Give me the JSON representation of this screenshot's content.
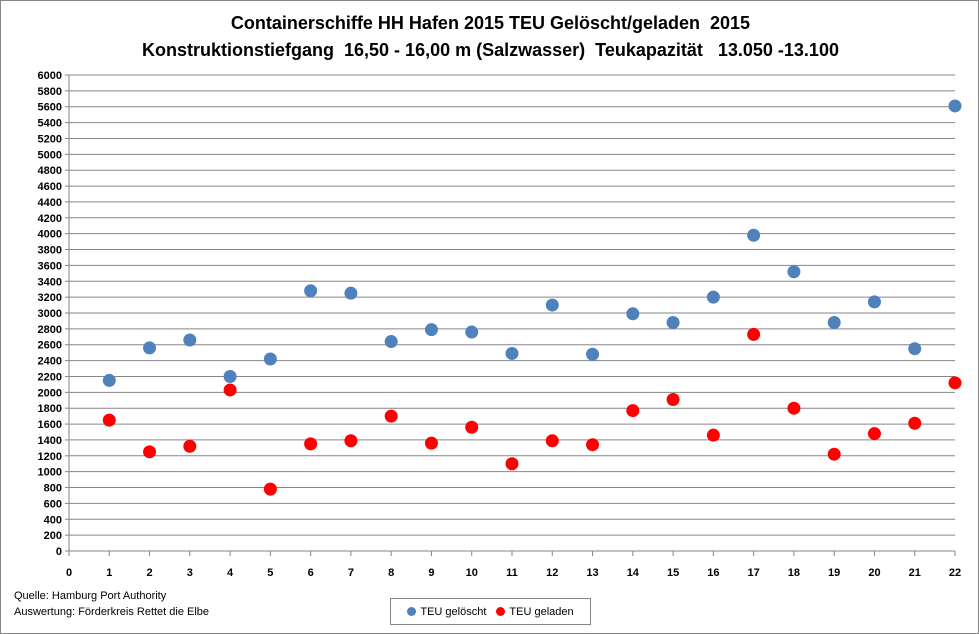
{
  "chart_data": {
    "type": "scatter",
    "title": "Containerschiffe HH Hafen 2015 TEU Gelöscht/geladen  2015",
    "subtitle": "Konstruktionstiefgang  16,50 - 16,00 m (Salzwasser)  Teukapazität   13.050 -13.100",
    "xlabel": "",
    "ylabel": "",
    "xlim": [
      0,
      22
    ],
    "ylim": [
      0,
      6000
    ],
    "x_ticks": [
      0,
      1,
      2,
      3,
      4,
      5,
      6,
      7,
      8,
      9,
      10,
      11,
      12,
      13,
      14,
      15,
      16,
      17,
      18,
      19,
      20,
      21,
      22
    ],
    "y_ticks": [
      0,
      200,
      400,
      600,
      800,
      1000,
      1200,
      1400,
      1600,
      1800,
      2000,
      2200,
      2400,
      2600,
      2800,
      3000,
      3200,
      3400,
      3600,
      3800,
      4000,
      4200,
      4400,
      4600,
      4800,
      5000,
      5200,
      5400,
      5600,
      5800,
      6000
    ],
    "grid": "horizontal",
    "legend_position": "bottom",
    "x": [
      1,
      2,
      3,
      4,
      5,
      6,
      7,
      8,
      9,
      10,
      11,
      12,
      13,
      14,
      15,
      16,
      17,
      18,
      19,
      20,
      21,
      22
    ],
    "series": [
      {
        "name": "TEU gelöscht",
        "color": "#4f81bd",
        "values": [
          2150,
          2560,
          2660,
          2200,
          2420,
          3280,
          3250,
          2640,
          2790,
          2760,
          2490,
          3100,
          2480,
          2990,
          2880,
          3200,
          3980,
          3520,
          2880,
          3140,
          2550,
          5610
        ]
      },
      {
        "name": "TEU geladen",
        "color": "#ff0000",
        "values": [
          1650,
          1250,
          1320,
          2030,
          780,
          1350,
          1390,
          1700,
          1360,
          1560,
          1100,
          1390,
          1340,
          1770,
          1910,
          1460,
          2730,
          1800,
          1220,
          1480,
          1610,
          2120
        ]
      }
    ]
  },
  "source": {
    "line1": "Quelle: Hamburg Port Authority",
    "line2": "Auswertung: Förderkreis Rettet die Elbe"
  }
}
